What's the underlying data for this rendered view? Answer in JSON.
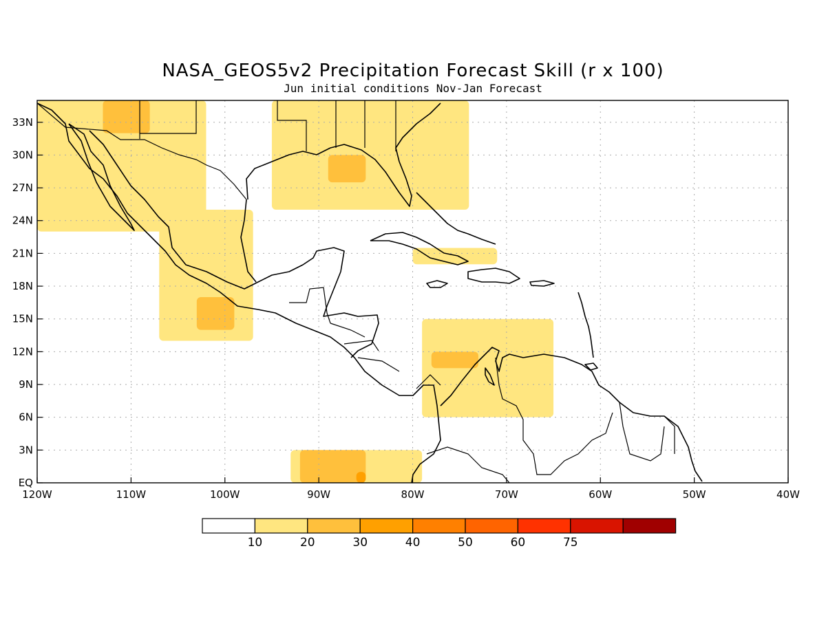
{
  "title": "NASA_GEOS5v2 Precipitation Forecast Skill (r x 100)",
  "subtitle": "Jun initial conditions  Nov-Jan Forecast",
  "colors": {
    "c10": "#ffe680",
    "c20": "#ffc03c",
    "c30": "#ffa000",
    "c40": "#ff8000",
    "c50": "#ff6400",
    "c60": "#ff3200",
    "c75": "#d91400",
    "c90": "#a00000",
    "coast": "#000000",
    "grid": "#aaaaaa"
  },
  "chart_data": {
    "type": "heatmap",
    "map_extent": {
      "lon": [
        -120,
        -40
      ],
      "lat": [
        0,
        35
      ]
    },
    "grid": true,
    "x_ticks": [
      "120W",
      "110W",
      "100W",
      "90W",
      "80W",
      "70W",
      "60W",
      "50W",
      "40W"
    ],
    "y_ticks": [
      "EQ",
      "3N",
      "6N",
      "9N",
      "12N",
      "15N",
      "18N",
      "21N",
      "24N",
      "27N",
      "30N",
      "33N"
    ],
    "colorbar": {
      "thresholds": [
        "10",
        "20",
        "30",
        "40",
        "50",
        "60",
        "75"
      ],
      "colors": [
        "#ffffff",
        "#ffe680",
        "#ffc03c",
        "#ffa000",
        "#ff8000",
        "#ff6400",
        "#ff3200",
        "#d91400",
        "#a00000"
      ]
    },
    "regions": [
      {
        "level": "10-20",
        "lon": [
          -120,
          -102
        ],
        "lat": [
          23,
          35
        ]
      },
      {
        "level": "10-20",
        "lon": [
          -107,
          -97
        ],
        "lat": [
          13,
          25
        ]
      },
      {
        "level": "10-20",
        "lon": [
          -95,
          -74
        ],
        "lat": [
          25,
          35
        ]
      },
      {
        "level": "10-20",
        "lon": [
          -80,
          -71
        ],
        "lat": [
          20,
          21.5
        ]
      },
      {
        "level": "10-20",
        "lon": [
          -79,
          -65
        ],
        "lat": [
          6,
          15
        ]
      },
      {
        "level": "10-20",
        "lon": [
          -93,
          -79
        ],
        "lat": [
          0,
          3
        ]
      },
      {
        "level": "20-30",
        "lon": [
          -103,
          -99
        ],
        "lat": [
          14,
          17
        ]
      },
      {
        "level": "20-30",
        "lon": [
          -89,
          -85
        ],
        "lat": [
          27.5,
          30
        ]
      },
      {
        "level": "20-30",
        "lon": [
          -113,
          -108
        ],
        "lat": [
          32,
          35
        ]
      },
      {
        "level": "20-30",
        "lon": [
          -92,
          -85
        ],
        "lat": [
          0,
          3
        ]
      },
      {
        "level": "20-30",
        "lon": [
          -78,
          -73
        ],
        "lat": [
          10.5,
          12
        ]
      },
      {
        "level": "30-40",
        "lon": [
          -86,
          -85
        ],
        "lat": [
          0,
          1
        ]
      }
    ]
  }
}
